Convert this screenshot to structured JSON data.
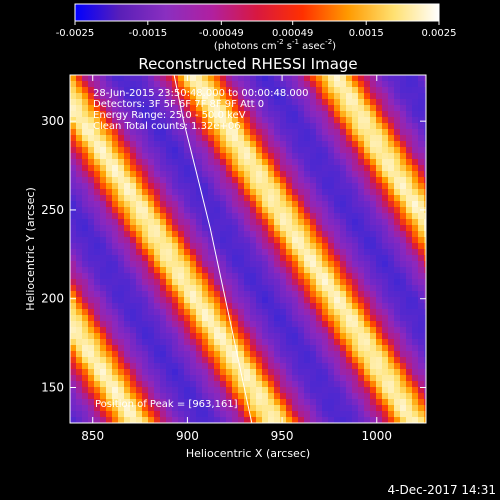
{
  "colorbar": {
    "ticks": [
      "-0.0025",
      "-0.0015",
      "-0.00049",
      "0.00049",
      "0.0015",
      "0.0025"
    ],
    "tick_values": [
      -0.0025,
      -0.0015,
      -0.00049,
      0.00049,
      0.0015,
      0.0025
    ],
    "unit_main": "(photons cm",
    "unit_sup1": "-2",
    "unit_mid": " s",
    "unit_sup2": "-1",
    "unit_end": " asec",
    "unit_sup3": "-2",
    "unit_close": ")",
    "colors": [
      "#0000ff",
      "#5a1fb8",
      "#8a2fc0",
      "#b020a0",
      "#d81840",
      "#ff3000",
      "#ff9a00",
      "#ffe070",
      "#ffffff"
    ]
  },
  "chart_data": {
    "type": "heatmap",
    "title": "Reconstructed RHESSI Image",
    "xlabel": "Heliocentric X (arcsec)",
    "ylabel": "Heliocentric Y (arcsec)",
    "xlim": [
      838,
      1026
    ],
    "ylim": [
      130,
      326
    ],
    "x_ticks": [
      850,
      900,
      950,
      1000
    ],
    "y_ticks": [
      150,
      200,
      250,
      300
    ],
    "x_tick_labels": [
      "850",
      "900",
      "950",
      "1000"
    ],
    "y_tick_labels": [
      "150",
      "200",
      "250",
      "300"
    ],
    "info_lines": [
      "28-Jun-2015 23:50:48.000 to 00:00:48.000",
      "Detectors: 3F 5F 6F 7F 8F 9F  Att 0",
      "Energy Range: 25.0 - 50.0 keV",
      "Clean    Total counts: 1.32e+06"
    ],
    "peak_label": "Position of Peak = [963,161]",
    "peak": [
      963,
      161
    ],
    "limb_points": [
      [
        893,
        326
      ],
      [
        898,
        300
      ],
      [
        905,
        270
      ],
      [
        912,
        240
      ],
      [
        918,
        210
      ],
      [
        924,
        180
      ],
      [
        930,
        150
      ],
      [
        934,
        130
      ]
    ]
  },
  "footer": {
    "date": "4-Dec-2017 14:31"
  }
}
